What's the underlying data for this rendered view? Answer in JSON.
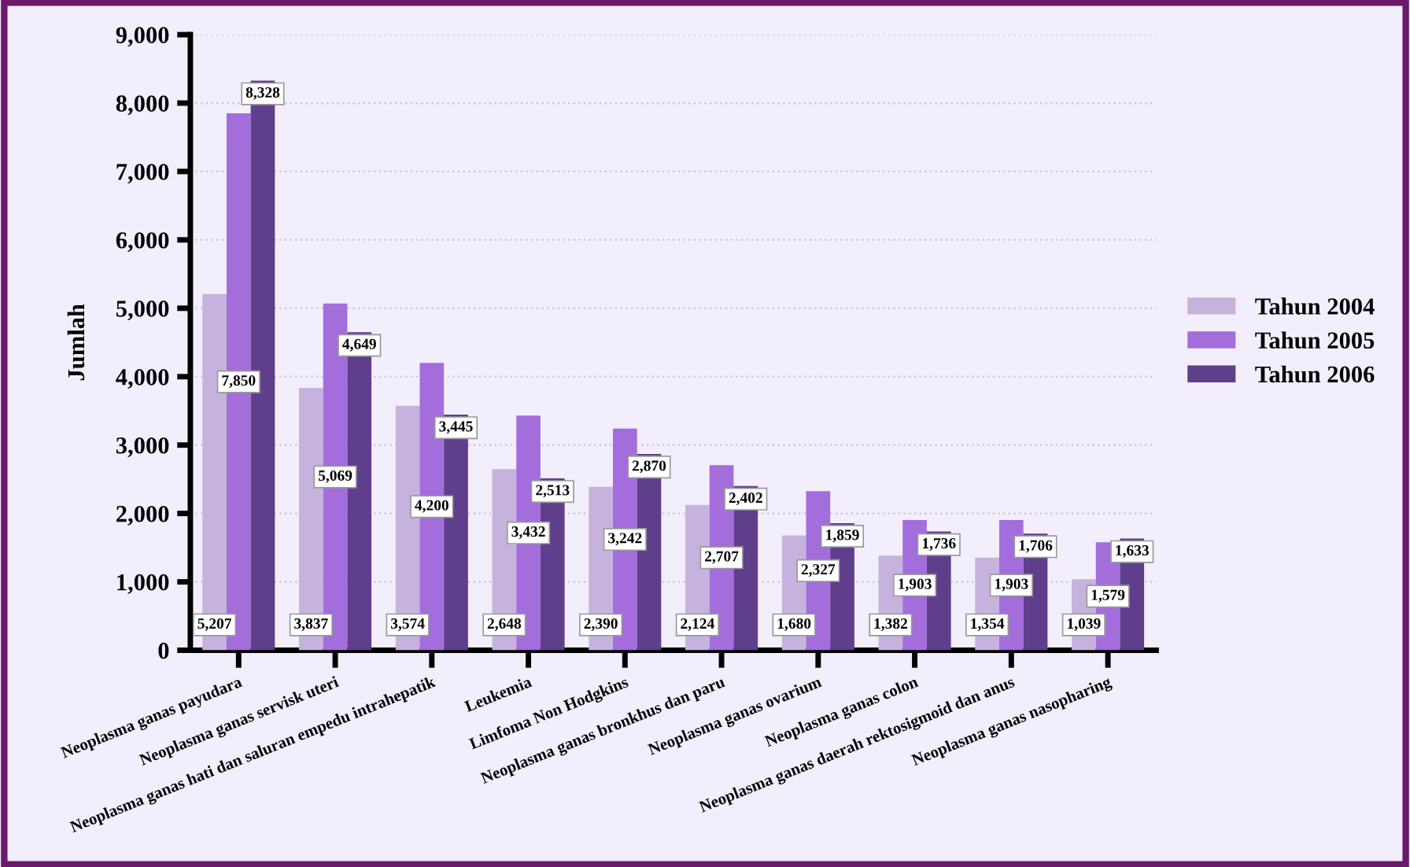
{
  "chart_data": {
    "type": "bar",
    "ylabel": "Jumlah",
    "categories": [
      "Neoplasma ganas payudara",
      "Neoplasma ganas servisk uteri",
      "Neoplasma ganas hati dan saluran empedu intrahepatik",
      "Leukemia",
      "Limfoma Non Hodgkins",
      "Neoplasma ganas bronkhus dan paru",
      "Neoplasma ganas ovarium",
      "Neoplasma ganas colon",
      "Neoplasma ganas daerah rektosigmoid dan anus",
      "Neoplasma ganas nasopharing"
    ],
    "series": [
      {
        "name": "Tahun 2004",
        "color": "#c5b3dd",
        "values": [
          5207,
          3837,
          3574,
          2648,
          2390,
          2124,
          1680,
          1382,
          1354,
          1039
        ],
        "value_labels": [
          "5,207",
          "3,837",
          "3,574",
          "2,648",
          "2,390",
          "2,124",
          "1,680",
          "1,382",
          "1,354",
          "1,039"
        ]
      },
      {
        "name": "Tahun 2005",
        "color": "#a46ddc",
        "values": [
          7850,
          5069,
          4200,
          3432,
          3242,
          2707,
          2327,
          1903,
          1903,
          1579
        ],
        "value_labels": [
          "7,850",
          "5,069",
          "4,200",
          "3,432",
          "3,242",
          "2,707",
          "2,327",
          "1,903",
          "1,903",
          "1,579"
        ]
      },
      {
        "name": "Tahun 2006",
        "color": "#5f3f8c",
        "values": [
          8328,
          4649,
          3445,
          2513,
          2870,
          2402,
          1859,
          1736,
          1706,
          1633
        ],
        "value_labels": [
          "8,328",
          "4,649",
          "3,445",
          "2,513",
          "2,870",
          "2,402",
          "1,859",
          "1,736",
          "1,706",
          "1,633"
        ]
      }
    ],
    "ylim": [
      0,
      9000
    ],
    "yticks": [
      {
        "value": 0,
        "label": "0"
      },
      {
        "value": 1000,
        "label": "1,000"
      },
      {
        "value": 2000,
        "label": "2,000"
      },
      {
        "value": 3000,
        "label": "3,000"
      },
      {
        "value": 4000,
        "label": "4,000"
      },
      {
        "value": 5000,
        "label": "5,000"
      },
      {
        "value": 6000,
        "label": "6,000"
      },
      {
        "value": 7000,
        "label": "7,000"
      },
      {
        "value": 8000,
        "label": "8,000"
      },
      {
        "value": 9000,
        "label": "9,000"
      }
    ],
    "grid": "y",
    "legend": "right"
  }
}
